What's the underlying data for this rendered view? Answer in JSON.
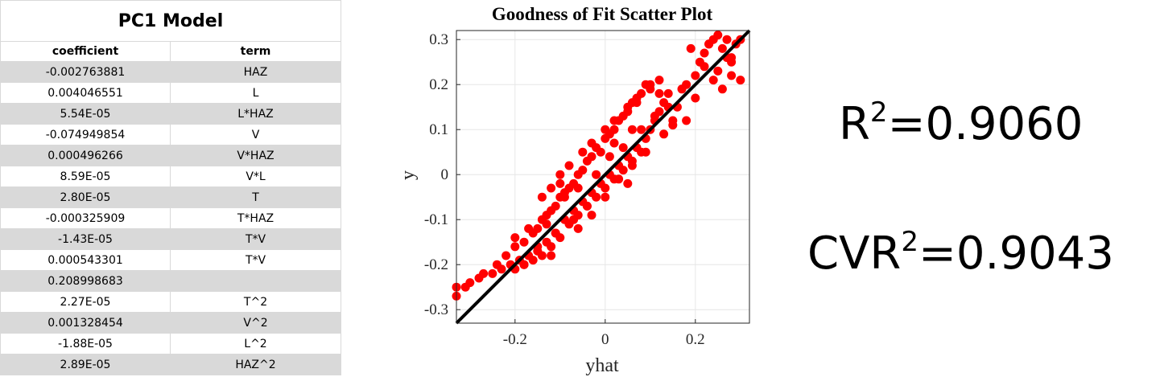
{
  "table": {
    "title": "PC1 Model",
    "headers": [
      "coefficient",
      "term"
    ],
    "rows": [
      {
        "coefficient": "-0.002763881",
        "term": "HAZ"
      },
      {
        "coefficient": "0.004046551",
        "term": "L"
      },
      {
        "coefficient": "5.54E-05",
        "term": "L*HAZ"
      },
      {
        "coefficient": "-0.074949854",
        "term": "V"
      },
      {
        "coefficient": "0.000496266",
        "term": "V*HAZ"
      },
      {
        "coefficient": "8.59E-05",
        "term": "V*L"
      },
      {
        "coefficient": "2.80E-05",
        "term": "T"
      },
      {
        "coefficient": "-0.000325909",
        "term": "T*HAZ"
      },
      {
        "coefficient": "-1.43E-05",
        "term": "T*V"
      },
      {
        "coefficient": "0.000543301",
        "term": "T*V"
      },
      {
        "coefficient": "0.208998683",
        "term": ""
      },
      {
        "coefficient": "2.27E-05",
        "term": "T^2"
      },
      {
        "coefficient": "0.001328454",
        "term": "V^2"
      },
      {
        "coefficient": "-1.88E-05",
        "term": "L^2"
      },
      {
        "coefficient": "2.89E-05",
        "term": "HAZ^2"
      }
    ]
  },
  "chart_data": {
    "type": "scatter",
    "title": "Goodness of Fit Scatter Plot",
    "xlabel": "yhat",
    "ylabel": "y",
    "xlim": [
      -0.33,
      0.32
    ],
    "ylim": [
      -0.33,
      0.32
    ],
    "x_ticks": [
      -0.2,
      0,
      0.2
    ],
    "x_tick_labels": [
      "-0.2",
      "0",
      "0.2"
    ],
    "y_ticks": [
      -0.3,
      -0.2,
      -0.1,
      0,
      0.1,
      0.2,
      0.3
    ],
    "y_tick_labels": [
      "-0.3",
      "-0.2",
      "-0.1",
      "0",
      "0.1",
      "0.2",
      "0.3"
    ],
    "grid": true,
    "marker_color": "#ff0000",
    "fit_line_color": "#000000",
    "fit_line": {
      "x": [
        -0.33,
        0.32
      ],
      "y": [
        -0.33,
        0.32
      ]
    },
    "series": [
      {
        "x": [
          -0.33,
          -0.33,
          -0.31,
          -0.3,
          -0.28,
          -0.27,
          -0.25,
          -0.24,
          -0.23,
          -0.22,
          -0.21,
          -0.2,
          -0.2,
          -0.19,
          -0.18,
          -0.18,
          -0.17,
          -0.16,
          -0.16,
          -0.15,
          -0.15,
          -0.14,
          -0.14,
          -0.13,
          -0.13,
          -0.12,
          -0.12,
          -0.11,
          -0.11,
          -0.1,
          -0.1,
          -0.09,
          -0.09,
          -0.08,
          -0.08,
          -0.07,
          -0.07,
          -0.06,
          -0.06,
          -0.05,
          -0.05,
          -0.04,
          -0.04,
          -0.03,
          -0.03,
          -0.02,
          -0.02,
          -0.01,
          -0.01,
          0,
          0,
          0.01,
          0.01,
          0.02,
          0.02,
          0.03,
          0.03,
          0.04,
          0.04,
          0.05,
          0.05,
          0.06,
          0.06,
          0.07,
          0.07,
          0.08,
          0.08,
          0.09,
          0.09,
          0.1,
          0.1,
          0.11,
          0.12,
          0.13,
          0.14,
          0.16,
          0.18,
          0.2,
          0.21,
          0.22,
          0.23,
          0.24,
          0.25,
          0.26,
          0.27,
          0.28,
          0.29,
          0.3,
          0.22,
          0.25,
          0.28,
          0.18,
          0.2,
          0.24,
          0.27,
          0.3,
          0.23,
          0.26,
          0.19,
          0.28,
          -0.14,
          -0.12,
          -0.1,
          -0.08,
          -0.05,
          -0.03,
          0.0,
          0.02,
          0.05,
          0.07,
          0.1,
          0.12,
          -0.2,
          -0.17,
          -0.13,
          -0.09,
          -0.06,
          -0.02,
          0.01,
          0.04,
          0.08,
          0.11,
          0.14,
          0.17,
          -0.18,
          -0.15,
          -0.11,
          -0.07,
          -0.04,
          0.03,
          0.06,
          0.09,
          0.13,
          0.15,
          0.0,
          -0.06,
          0.06,
          -0.12,
          0.12,
          0.02,
          -0.1,
          0.15,
          0.05,
          -0.03
        ],
        "y": [
          -0.27,
          -0.25,
          -0.25,
          -0.24,
          -0.23,
          -0.22,
          -0.22,
          -0.2,
          -0.21,
          -0.18,
          -0.2,
          -0.16,
          -0.21,
          -0.19,
          -0.15,
          -0.2,
          -0.18,
          -0.13,
          -0.19,
          -0.16,
          -0.12,
          -0.18,
          -0.1,
          -0.15,
          -0.11,
          -0.16,
          -0.08,
          -0.13,
          -0.07,
          -0.14,
          -0.05,
          -0.1,
          -0.04,
          -0.11,
          -0.03,
          -0.08,
          -0.02,
          -0.09,
          0.0,
          -0.06,
          0.01,
          -0.07,
          0.03,
          -0.04,
          0.04,
          -0.05,
          0.06,
          -0.02,
          0.05,
          -0.03,
          0.08,
          0.0,
          0.09,
          -0.01,
          0.1,
          0.02,
          0.12,
          0.01,
          0.13,
          0.04,
          0.15,
          0.03,
          0.16,
          0.06,
          0.17,
          0.05,
          0.18,
          0.08,
          0.2,
          0.1,
          0.19,
          0.12,
          0.14,
          0.16,
          0.18,
          0.15,
          0.2,
          0.22,
          0.25,
          0.27,
          0.29,
          0.3,
          0.31,
          0.28,
          0.3,
          0.26,
          0.29,
          0.3,
          0.24,
          0.23,
          0.22,
          0.12,
          0.17,
          0.21,
          0.26,
          0.21,
          0.29,
          0.19,
          0.28,
          0.25,
          -0.05,
          -0.03,
          0.0,
          0.02,
          0.05,
          0.07,
          0.1,
          0.12,
          0.14,
          0.16,
          0.2,
          0.21,
          -0.14,
          -0.12,
          -0.09,
          -0.05,
          -0.03,
          0.0,
          0.04,
          0.06,
          0.1,
          0.13,
          0.15,
          0.19,
          -0.2,
          -0.17,
          -0.13,
          -0.1,
          -0.07,
          -0.01,
          0.02,
          0.05,
          0.09,
          0.11,
          -0.05,
          -0.12,
          0.1,
          -0.18,
          0.18,
          0.07,
          -0.02,
          0.12,
          -0.02,
          -0.09
        ]
      }
    ]
  },
  "metrics": {
    "r2_prefix": "R",
    "r2_sup": "2",
    "r2_value": "=0.9060",
    "cvr2_prefix": "CVR",
    "cvr2_sup": "2",
    "cvr2_value": "=0.9043"
  }
}
